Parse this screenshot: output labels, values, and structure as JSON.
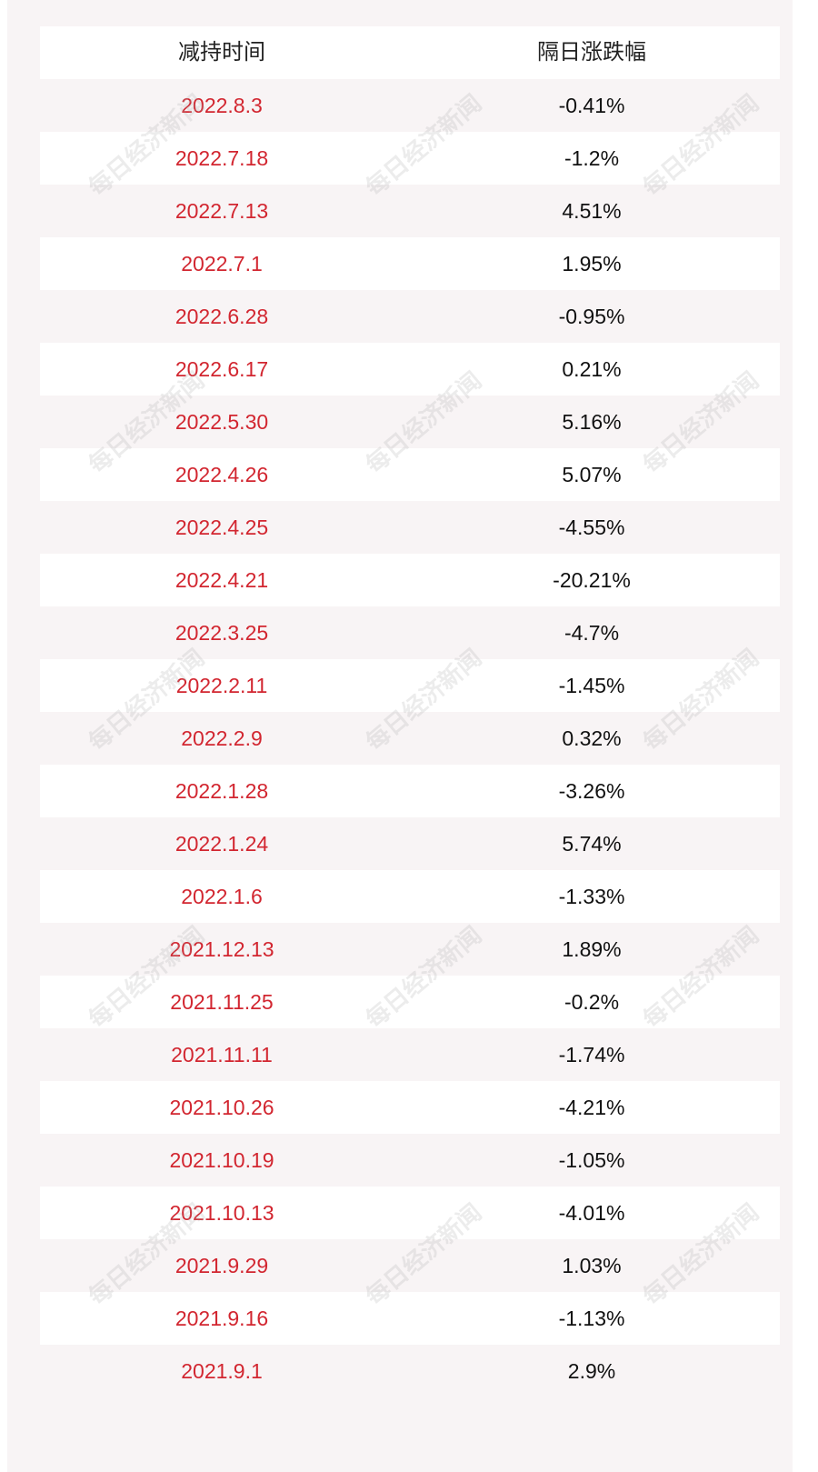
{
  "table": {
    "headers": {
      "date": "减持时间",
      "change": "隔日涨跌幅"
    },
    "rows": [
      {
        "date": "2022.8.3",
        "change": "-0.41%"
      },
      {
        "date": "2022.7.18",
        "change": "-1.2%"
      },
      {
        "date": "2022.7.13",
        "change": "4.51%"
      },
      {
        "date": "2022.7.1",
        "change": "1.95%"
      },
      {
        "date": "2022.6.28",
        "change": "-0.95%"
      },
      {
        "date": "2022.6.17",
        "change": "0.21%"
      },
      {
        "date": "2022.5.30",
        "change": "5.16%"
      },
      {
        "date": "2022.4.26",
        "change": "5.07%"
      },
      {
        "date": "2022.4.25",
        "change": "-4.55%"
      },
      {
        "date": "2022.4.21",
        "change": "-20.21%"
      },
      {
        "date": "2022.3.25",
        "change": "-4.7%"
      },
      {
        "date": "2022.2.11",
        "change": "-1.45%"
      },
      {
        "date": "2022.2.9",
        "change": "0.32%"
      },
      {
        "date": "2022.1.28",
        "change": "-3.26%"
      },
      {
        "date": "2022.1.24",
        "change": "5.74%"
      },
      {
        "date": "2022.1.6",
        "change": "-1.33%"
      },
      {
        "date": "2021.12.13",
        "change": "1.89%"
      },
      {
        "date": "2021.11.25",
        "change": "-0.2%"
      },
      {
        "date": "2021.11.11",
        "change": "-1.74%"
      },
      {
        "date": "2021.10.26",
        "change": "-4.21%"
      },
      {
        "date": "2021.10.19",
        "change": "-1.05%"
      },
      {
        "date": "2021.10.13",
        "change": "-4.01%"
      },
      {
        "date": "2021.9.29",
        "change": "1.03%"
      },
      {
        "date": "2021.9.16",
        "change": "-1.13%"
      },
      {
        "date": "2021.9.1",
        "change": "2.9%"
      }
    ]
  },
  "watermark": {
    "text": "每日经济新闻"
  },
  "colors": {
    "date_text": "#d22630",
    "value_text": "#111111",
    "background": "#f8f4f5",
    "row_alt": "#ffffff"
  }
}
